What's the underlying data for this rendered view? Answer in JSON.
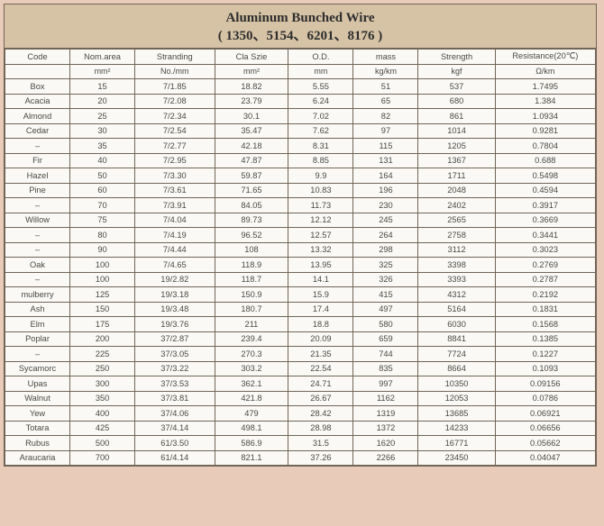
{
  "title_line1": "Aluminum  Bunched Wire",
  "title_line2": "( 1350、5154、6201、8176 )",
  "columns": [
    "Code",
    "Nom.area",
    "Stranding",
    "Cla Szie",
    "O.D.",
    "mass",
    "Strength",
    "Resistance(20℃)"
  ],
  "units": [
    "",
    "mm²",
    "No./mm",
    "mm²",
    "mm",
    "kg/km",
    "kgf",
    "Ω/km"
  ],
  "rows": [
    [
      "Box",
      "15",
      "7/1.85",
      "18.82",
      "5.55",
      "51",
      "537",
      "1.7495"
    ],
    [
      "Acacia",
      "20",
      "7/2.08",
      "23.79",
      "6.24",
      "65",
      "680",
      "1.384"
    ],
    [
      "Almond",
      "25",
      "7/2.34",
      "30.1",
      "7.02",
      "82",
      "861",
      "1.0934"
    ],
    [
      "Cedar",
      "30",
      "7/2.54",
      "35.47",
      "7.62",
      "97",
      "1014",
      "0.9281"
    ],
    [
      "–",
      "35",
      "7/2.77",
      "42.18",
      "8.31",
      "115",
      "1205",
      "0.7804"
    ],
    [
      "Fir",
      "40",
      "7/2.95",
      "47.87",
      "8.85",
      "131",
      "1367",
      "0.688"
    ],
    [
      "Hazel",
      "50",
      "7/3.30",
      "59.87",
      "9.9",
      "164",
      "1711",
      "0.5498"
    ],
    [
      "Pine",
      "60",
      "7/3.61",
      "71.65",
      "10.83",
      "196",
      "2048",
      "0.4594"
    ],
    [
      "–",
      "70",
      "7/3.91",
      "84.05",
      "11.73",
      "230",
      "2402",
      "0.3917"
    ],
    [
      "Willow",
      "75",
      "7/4.04",
      "89.73",
      "12.12",
      "245",
      "2565",
      "0.3669"
    ],
    [
      "–",
      "80",
      "7/4.19",
      "96.52",
      "12.57",
      "264",
      "2758",
      "0.3441"
    ],
    [
      "–",
      "90",
      "7/4.44",
      "108",
      "13.32",
      "298",
      "3112",
      "0.3023"
    ],
    [
      "Oak",
      "100",
      "7/4.65",
      "118.9",
      "13.95",
      "325",
      "3398",
      "0.2769"
    ],
    [
      "–",
      "100",
      "19/2.82",
      "118.7",
      "14.1",
      "326",
      "3393",
      "0.2787"
    ],
    [
      "mulberry",
      "125",
      "19/3.18",
      "150.9",
      "15.9",
      "415",
      "4312",
      "0.2192"
    ],
    [
      "Ash",
      "150",
      "19/3.48",
      "180.7",
      "17.4",
      "497",
      "5164",
      "0.1831"
    ],
    [
      "Elm",
      "175",
      "19/3.76",
      "211",
      "18.8",
      "580",
      "6030",
      "0.1568"
    ],
    [
      "Poplar",
      "200",
      "37/2.87",
      "239.4",
      "20.09",
      "659",
      "8841",
      "0.1385"
    ],
    [
      "–",
      "225",
      "37/3.05",
      "270.3",
      "21.35",
      "744",
      "7724",
      "0.1227"
    ],
    [
      "Sycamorc",
      "250",
      "37/3.22",
      "303.2",
      "22.54",
      "835",
      "8664",
      "0.1093"
    ],
    [
      "Upas",
      "300",
      "37/3.53",
      "362.1",
      "24.71",
      "997",
      "10350",
      "0.09156"
    ],
    [
      "Walnut",
      "350",
      "37/3.81",
      "421.8",
      "26.67",
      "1162",
      "12053",
      "0.0786"
    ],
    [
      "Yew",
      "400",
      "37/4.06",
      "479",
      "28.42",
      "1319",
      "13685",
      "0.06921"
    ],
    [
      "Totara",
      "425",
      "37/4.14",
      "498.1",
      "28.98",
      "1372",
      "14233",
      "0.06656"
    ],
    [
      "Rubus",
      "500",
      "61/3.50",
      "586.9",
      "31.5",
      "1620",
      "16771",
      "0.05662"
    ],
    [
      "Araucaria",
      "700",
      "61/4.14",
      "821.1",
      "37.26",
      "2266",
      "23450",
      "0.04047"
    ]
  ],
  "style": {
    "background_outer": "#e8cbb8",
    "background_table": "#fbf9f6",
    "header_bg": "#d6c3a5",
    "border_color": "#706557",
    "text_color": "#4b4942",
    "title_fontsize_pt": 12,
    "cell_fontsize_pt": 7,
    "col_widths_pct": [
      11,
      11,
      13.5,
      12.5,
      11,
      11,
      13,
      17
    ]
  }
}
